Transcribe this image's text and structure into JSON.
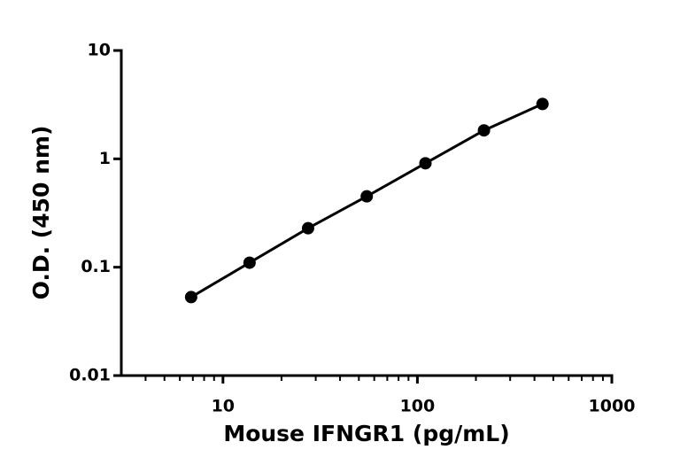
{
  "chart_data": {
    "type": "scatter",
    "x_label": "Mouse IFNGR1 (pg/mL)",
    "y_label": "O.D. (450 nm)",
    "x_log": true,
    "y_log": true,
    "xlim": [
      3,
      1000
    ],
    "ylim": [
      0.01,
      10
    ],
    "xticks": [
      10,
      100,
      1000
    ],
    "yticks": [
      0.01,
      0.1,
      1,
      10
    ],
    "xminorticks": [
      4,
      5,
      6,
      7,
      8,
      9,
      20,
      30,
      40,
      50,
      60,
      70,
      80,
      90,
      200,
      300,
      400,
      500,
      600,
      700,
      800,
      900
    ],
    "connect": true,
    "series": [
      {
        "color": "#000000",
        "x": [
          6.86,
          13.7,
          27.4,
          54.9,
          110,
          220,
          440
        ],
        "values": [
          0.053,
          0.11,
          0.229,
          0.451,
          0.91,
          1.83,
          3.21
        ]
      }
    ]
  }
}
